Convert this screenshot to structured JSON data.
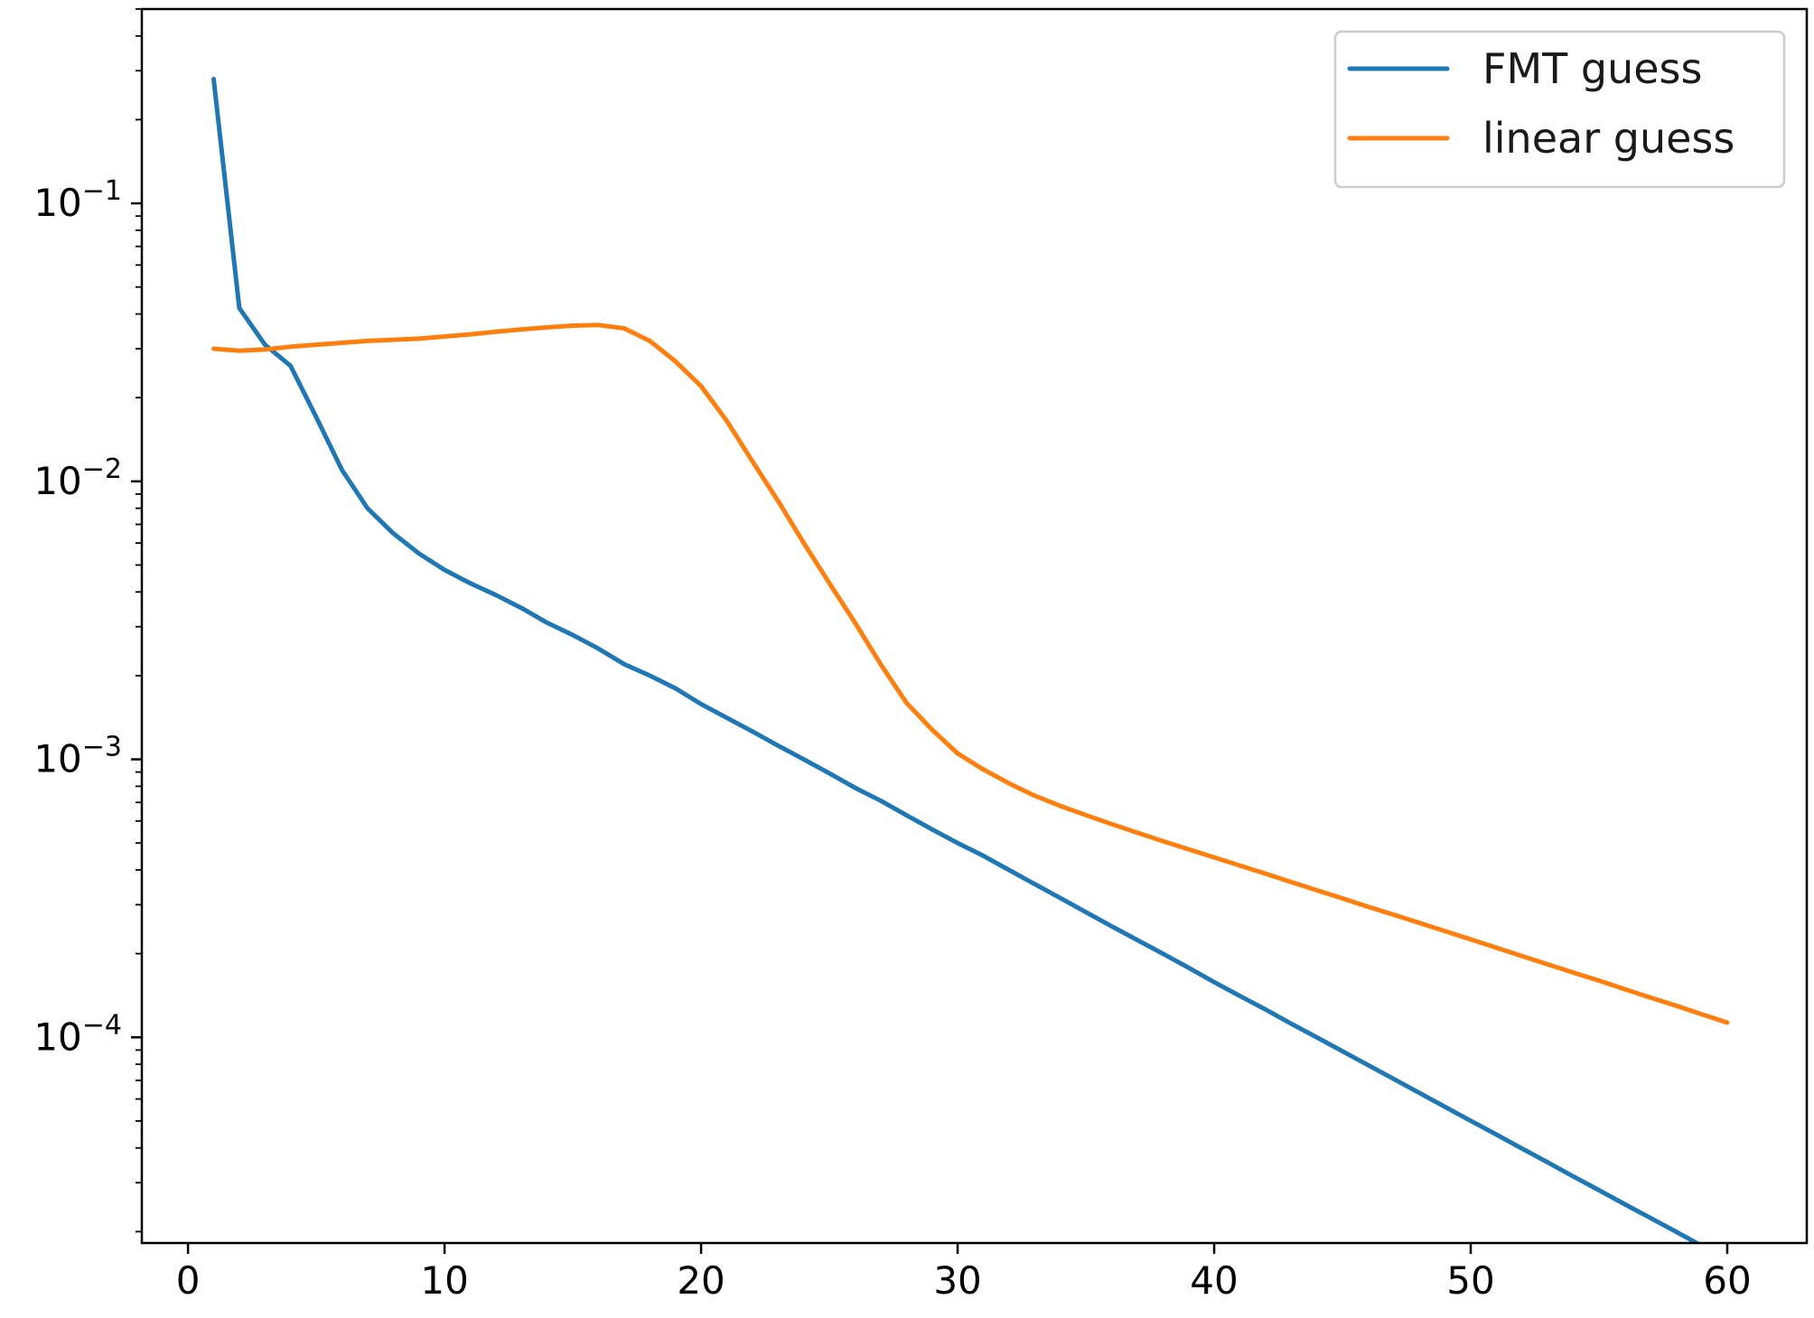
{
  "chart_data": {
    "type": "line",
    "title": "",
    "xlabel": "",
    "ylabel": "",
    "yscale": "log",
    "xlim": [
      -1.8,
      63.1
    ],
    "ylim": [
      1.82e-05,
      0.5
    ],
    "grid": false,
    "legend_position": "top-right",
    "x_ticks": [
      {
        "value": 0,
        "label": "0"
      },
      {
        "value": 10,
        "label": "10"
      },
      {
        "value": 20,
        "label": "20"
      },
      {
        "value": 30,
        "label": "30"
      },
      {
        "value": 40,
        "label": "40"
      },
      {
        "value": 50,
        "label": "50"
      },
      {
        "value": 60,
        "label": "60"
      }
    ],
    "y_ticks": [
      {
        "value": 0.1,
        "base": "10",
        "exp": "−1"
      },
      {
        "value": 0.01,
        "base": "10",
        "exp": "−2"
      },
      {
        "value": 0.001,
        "base": "10",
        "exp": "−3"
      },
      {
        "value": 0.0001,
        "base": "10",
        "exp": "−4"
      }
    ],
    "x": [
      1,
      2,
      3,
      4,
      5,
      6,
      7,
      8,
      9,
      10,
      11,
      12,
      13,
      14,
      15,
      16,
      17,
      18,
      19,
      20,
      21,
      22,
      23,
      24,
      25,
      26,
      27,
      28,
      29,
      30,
      31,
      32,
      33,
      34,
      35,
      36,
      37,
      38,
      39,
      40,
      41,
      42,
      43,
      44,
      45,
      46,
      47,
      48,
      49,
      50,
      51,
      52,
      53,
      54,
      55,
      56,
      57,
      58,
      59,
      60
    ],
    "series": [
      {
        "name": "FMT guess",
        "color": "#1f77b4",
        "values": [
          0.28,
          0.042,
          0.031,
          0.026,
          0.017,
          0.011,
          0.008,
          0.0065,
          0.0055,
          0.0048,
          0.0043,
          0.0039,
          0.0035,
          0.0031,
          0.0028,
          0.0025,
          0.0022,
          0.002,
          0.0018,
          0.00158,
          0.00141,
          0.00126,
          0.00112,
          0.001,
          0.00089,
          0.00079,
          0.00071,
          0.00063,
          0.00056,
          0.0005,
          0.00045,
          0.0004,
          0.000356,
          0.000317,
          0.000282,
          0.000251,
          0.000224,
          0.0002,
          0.000178,
          0.000158,
          0.000141,
          0.000126,
          0.000112,
          0.0001,
          8.91e-05,
          7.94e-05,
          7.08e-05,
          6.31e-05,
          5.62e-05,
          5.01e-05,
          4.47e-05,
          3.98e-05,
          3.55e-05,
          3.16e-05,
          2.82e-05,
          2.51e-05,
          2.24e-05,
          2e-05,
          1.78e-05,
          1.58e-05
        ]
      },
      {
        "name": "linear guess",
        "color": "#ff7f0e",
        "values": [
          0.03,
          0.0295,
          0.0298,
          0.0305,
          0.031,
          0.0315,
          0.032,
          0.0323,
          0.0326,
          0.0332,
          0.0338,
          0.0345,
          0.0352,
          0.0358,
          0.0363,
          0.0365,
          0.0355,
          0.032,
          0.027,
          0.022,
          0.0165,
          0.0118,
          0.0085,
          0.006,
          0.0043,
          0.0031,
          0.0022,
          0.0016,
          0.00128,
          0.00105,
          0.00092,
          0.00082,
          0.00074,
          0.00068,
          0.00063,
          0.000585,
          0.000545,
          0.000508,
          0.000475,
          0.000444,
          0.000415,
          0.000388,
          0.000362,
          0.000338,
          0.000316,
          0.000295,
          0.000276,
          0.000258,
          0.000241,
          0.000225,
          0.00021,
          0.000196,
          0.000183,
          0.000171,
          0.00016,
          0.000149,
          0.000139,
          0.00013,
          0.000121,
          0.000113
        ]
      }
    ]
  }
}
